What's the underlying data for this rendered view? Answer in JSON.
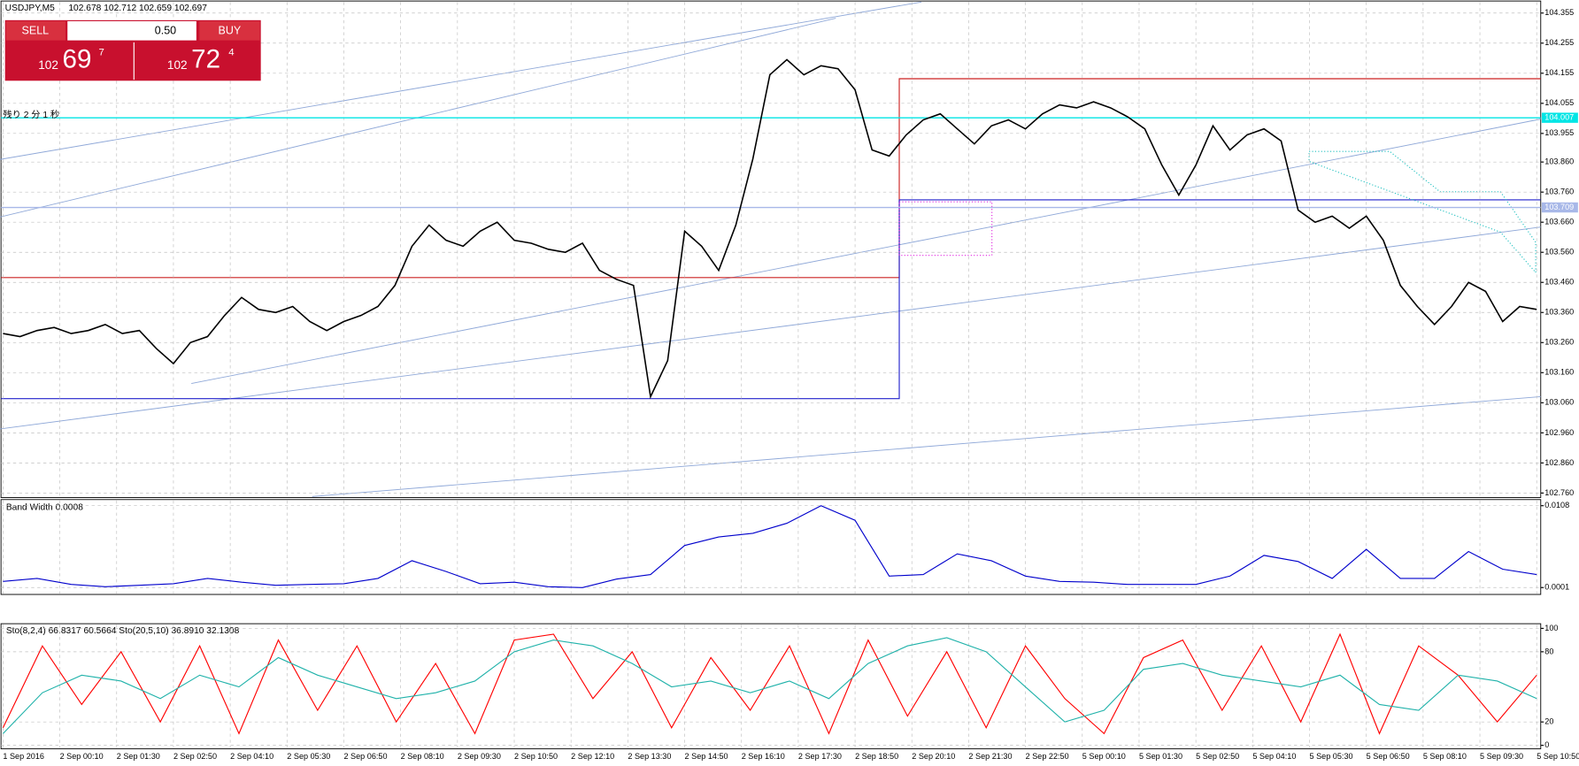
{
  "header": {
    "symbol": "USDJPY,M5",
    "quote": "102.678 102.712 102.659 102.697"
  },
  "trade_panel": {
    "sell": "SELL",
    "lot": "0.50",
    "buy": "BUY",
    "sell_big": "102",
    "sell_pips": "69",
    "sell_frac": "7",
    "buy_big": "102",
    "buy_pips": "72",
    "buy_frac": "4"
  },
  "countdown": "残り 2 分 1 秒",
  "price_axis": {
    "ylim": [
      102.745,
      104.395
    ],
    "ticks": [
      104.355,
      104.255,
      104.155,
      104.055,
      103.955,
      {
        "value": 103.86,
        "label": "103.860"
      },
      {
        "value": 103.76,
        "label": "103.760"
      },
      {
        "value": 103.66,
        "label": "103.660"
      },
      {
        "value": 103.56,
        "label": "103.560"
      },
      {
        "value": 103.46,
        "label": "103.460"
      },
      {
        "value": 103.36,
        "label": "103.360"
      },
      {
        "value": 103.26,
        "label": "103.260"
      },
      {
        "value": 103.16,
        "label": "103.160"
      },
      {
        "value": 103.06,
        "label": "103.060"
      },
      {
        "value": 102.96,
        "label": "102.960"
      },
      {
        "value": 102.86,
        "label": "102.860"
      },
      {
        "value": 102.76,
        "label": "102.760"
      }
    ],
    "markers": [
      {
        "value": 104.007,
        "color": "#00e5e5"
      },
      {
        "value": 103.709,
        "color": "#a8b8e8"
      }
    ]
  },
  "price_series": [
    103.29,
    103.28,
    103.3,
    103.31,
    103.29,
    103.3,
    103.32,
    103.29,
    103.3,
    103.24,
    103.19,
    103.26,
    103.28,
    103.35,
    103.41,
    103.37,
    103.36,
    103.38,
    103.33,
    103.3,
    103.33,
    103.35,
    103.38,
    103.45,
    103.58,
    103.65,
    103.6,
    103.58,
    103.63,
    103.66,
    103.6,
    103.59,
    103.57,
    103.56,
    103.59,
    103.5,
    103.47,
    103.45,
    103.08,
    103.2,
    103.63,
    103.58,
    103.5,
    103.65,
    103.87,
    104.15,
    104.2,
    104.15,
    104.18,
    104.17,
    104.1,
    103.9,
    103.88,
    103.95,
    104.0,
    104.02,
    103.97,
    103.92,
    103.98,
    104.0,
    103.97,
    104.02,
    104.05,
    104.04,
    104.06,
    104.04,
    104.01,
    103.97,
    103.85,
    103.75,
    103.85,
    103.98,
    103.9,
    103.95,
    103.97,
    103.93,
    103.7,
    103.66,
    103.68,
    103.64,
    103.68,
    103.6,
    103.45,
    103.38,
    103.32,
    103.38,
    103.46,
    103.43,
    103.33,
    103.38,
    103.37
  ],
  "time_labels": [
    "1 Sep 2016",
    "2 Sep 00:10",
    "2 Sep 01:30",
    "2 Sep 02:50",
    "2 Sep 04:10",
    "2 Sep 05:30",
    "2 Sep 06:50",
    "2 Sep 08:10",
    "2 Sep 09:30",
    "2 Sep 10:50",
    "2 Sep 12:10",
    "2 Sep 13:30",
    "2 Sep 14:50",
    "2 Sep 16:10",
    "2 Sep 17:30",
    "2 Sep 18:50",
    "2 Sep 20:10",
    "2 Sep 21:30",
    "2 Sep 22:50",
    "5 Sep 00:10",
    "5 Sep 01:30",
    "5 Sep 02:50",
    "5 Sep 04:10",
    "5 Sep 05:30",
    "5 Sep 06:50",
    "5 Sep 08:10",
    "5 Sep 09:30",
    "5 Sep 10:50"
  ],
  "band_width": {
    "label": "Band Width 0.0008",
    "ylim": [
      -0.0008,
      0.0116
    ],
    "ticks": [
      0.0108,
      0.0001
    ],
    "color": "#0000cc",
    "values": [
      0.0009,
      0.0013,
      0.0005,
      0.0002,
      0.0004,
      0.0006,
      0.0013,
      0.0008,
      0.0004,
      0.0005,
      0.0006,
      0.0013,
      0.0036,
      0.0022,
      0.0006,
      0.0008,
      0.0002,
      0.0001,
      0.0012,
      0.0018,
      0.0056,
      0.0067,
      0.0072,
      0.0085,
      0.0108,
      0.0089,
      0.0016,
      0.0018,
      0.0045,
      0.0036,
      0.0016,
      0.0009,
      0.0008,
      0.0005,
      0.0005,
      0.0005,
      0.0016,
      0.0043,
      0.0035,
      0.0013,
      0.0051,
      0.0013,
      0.0013,
      0.0048,
      0.0025,
      0.0018
    ]
  },
  "stochastic": {
    "label": "Sto(8,2,4) 66.8317 60.5664 Sto(20,5,10) 36.8910 32.1308",
    "ylim": [
      -3,
      104
    ],
    "ticks": [
      100,
      80,
      20,
      0
    ],
    "series": [
      {
        "color": "#ff0000",
        "values": [
          15,
          85,
          35,
          80,
          20,
          85,
          10,
          90,
          30,
          85,
          20,
          70,
          10,
          90,
          95,
          40,
          80,
          15,
          75,
          30,
          85,
          10,
          90,
          25,
          80,
          15,
          85,
          40,
          10,
          75,
          90,
          30,
          85,
          20,
          95,
          10,
          85,
          60,
          20,
          60
        ]
      },
      {
        "color": "#20b2aa",
        "values": [
          10,
          45,
          60,
          55,
          40,
          60,
          50,
          75,
          60,
          50,
          40,
          45,
          55,
          80,
          90,
          85,
          70,
          50,
          55,
          45,
          55,
          40,
          70,
          85,
          92,
          80,
          50,
          20,
          30,
          65,
          70,
          60,
          55,
          50,
          60,
          35,
          30,
          60,
          55,
          40
        ]
      }
    ]
  }
}
